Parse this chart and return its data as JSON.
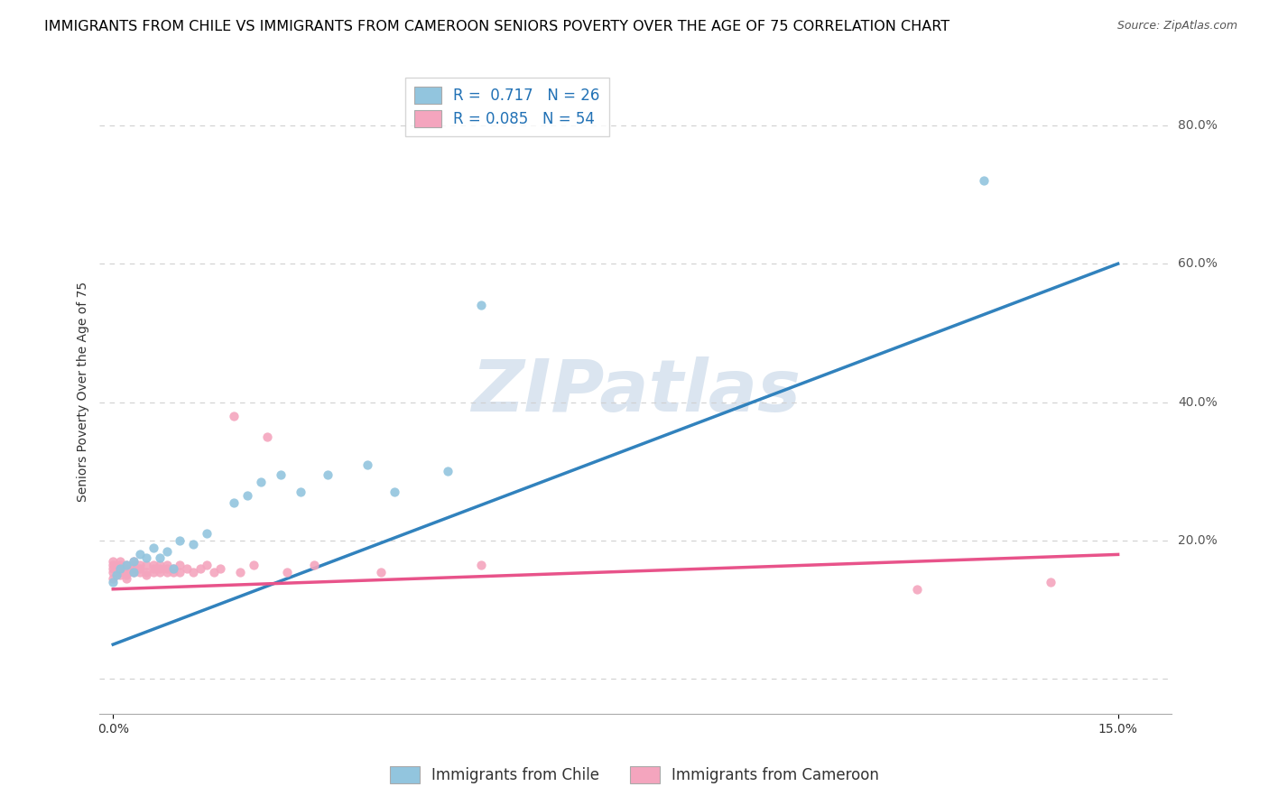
{
  "title": "IMMIGRANTS FROM CHILE VS IMMIGRANTS FROM CAMEROON SENIORS POVERTY OVER THE AGE OF 75 CORRELATION CHART",
  "source": "Source: ZipAtlas.com",
  "ylabel": "Seniors Poverty Over the Age of 75",
  "watermark": "ZIPatlas",
  "chile_color": "#92c5de",
  "cameroon_color": "#f4a5be",
  "chile_line_color": "#3182bd",
  "cameroon_line_color": "#e8538a",
  "R_chile": 0.717,
  "N_chile": 26,
  "R_cameroon": 0.085,
  "N_cameroon": 54,
  "xmin": 0.0,
  "xmax": 0.15,
  "xlim": [
    -0.002,
    0.158
  ],
  "ylim": [
    -0.05,
    0.88
  ],
  "chile_x": [
    0.0,
    0.0005,
    0.001,
    0.002,
    0.003,
    0.003,
    0.004,
    0.005,
    0.006,
    0.007,
    0.008,
    0.009,
    0.01,
    0.012,
    0.014,
    0.018,
    0.02,
    0.022,
    0.025,
    0.028,
    0.032,
    0.038,
    0.042,
    0.05,
    0.13,
    0.055
  ],
  "chile_y": [
    0.14,
    0.15,
    0.16,
    0.165,
    0.17,
    0.155,
    0.18,
    0.175,
    0.19,
    0.175,
    0.185,
    0.16,
    0.2,
    0.195,
    0.21,
    0.255,
    0.265,
    0.285,
    0.295,
    0.27,
    0.295,
    0.31,
    0.27,
    0.3,
    0.72,
    0.54
  ],
  "cameroon_x": [
    0.0,
    0.0,
    0.0,
    0.0,
    0.0,
    0.001,
    0.001,
    0.001,
    0.001,
    0.001,
    0.002,
    0.002,
    0.002,
    0.002,
    0.002,
    0.003,
    0.003,
    0.003,
    0.003,
    0.004,
    0.004,
    0.004,
    0.005,
    0.005,
    0.005,
    0.006,
    0.006,
    0.006,
    0.007,
    0.007,
    0.007,
    0.008,
    0.008,
    0.008,
    0.009,
    0.009,
    0.01,
    0.01,
    0.011,
    0.012,
    0.013,
    0.014,
    0.015,
    0.016,
    0.018,
    0.019,
    0.021,
    0.023,
    0.026,
    0.03,
    0.04,
    0.055,
    0.12,
    0.14
  ],
  "cameroon_y": [
    0.145,
    0.155,
    0.16,
    0.165,
    0.17,
    0.15,
    0.155,
    0.16,
    0.165,
    0.17,
    0.145,
    0.15,
    0.155,
    0.16,
    0.165,
    0.155,
    0.16,
    0.165,
    0.17,
    0.155,
    0.16,
    0.165,
    0.15,
    0.155,
    0.165,
    0.155,
    0.16,
    0.165,
    0.155,
    0.16,
    0.165,
    0.155,
    0.16,
    0.165,
    0.155,
    0.16,
    0.155,
    0.165,
    0.16,
    0.155,
    0.16,
    0.165,
    0.155,
    0.16,
    0.38,
    0.155,
    0.165,
    0.35,
    0.155,
    0.165,
    0.155,
    0.165,
    0.13,
    0.14
  ],
  "chile_line_y0": 0.05,
  "chile_line_y1": 0.6,
  "cameroon_line_y0": 0.13,
  "cameroon_line_y1": 0.18,
  "grid_color": "#d0d0d0",
  "legend_label_chile": "Immigrants from Chile",
  "legend_label_cameroon": "Immigrants from Cameroon",
  "legend_text_color": "#2171b5",
  "title_fontsize": 11.5,
  "axis_label_fontsize": 10,
  "tick_fontsize": 10,
  "legend_fontsize": 12,
  "source_fontsize": 9
}
